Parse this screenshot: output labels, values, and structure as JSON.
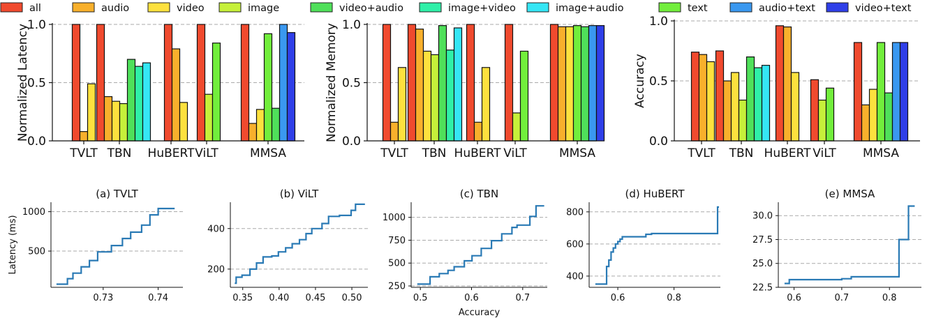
{
  "legend": [
    {
      "name": "all",
      "color": "#f04a2e"
    },
    {
      "name": "audio",
      "color": "#f8b02c"
    },
    {
      "name": "video",
      "color": "#fde13e"
    },
    {
      "name": "image",
      "color": "#c6f03a"
    },
    {
      "name": "video+audio",
      "color": "#4fe05a"
    },
    {
      "name": "image+video",
      "color": "#2ff0a8"
    },
    {
      "name": "image+audio",
      "color": "#35e6f5"
    },
    {
      "name": "text",
      "color": "#72ee3c"
    },
    {
      "name": "audio+text",
      "color": "#3a98f0"
    },
    {
      "name": "video+text",
      "color": "#2f3fe8"
    }
  ],
  "chart_data": [
    {
      "type": "bar",
      "ylabel": "Normalized Latency",
      "ylim": [
        0,
        1.0
      ],
      "yticks": [
        "0.0",
        "0.5",
        "1.0"
      ],
      "grid": "horizontal dashed at 0.5 and 1.0",
      "categories": [
        "TVLT",
        "TBN",
        "HuBERT",
        "ViLT",
        "MMSA"
      ],
      "groups": [
        {
          "category": "TVLT",
          "bars": [
            {
              "series": "all",
              "value": 1.0
            },
            {
              "series": "audio",
              "value": 0.08
            },
            {
              "series": "video",
              "value": 0.49
            }
          ]
        },
        {
          "category": "TBN",
          "bars": [
            {
              "series": "all",
              "value": 1.0
            },
            {
              "series": "audio",
              "value": 0.38
            },
            {
              "series": "video",
              "value": 0.34
            },
            {
              "series": "image",
              "value": 0.32
            },
            {
              "series": "video+audio",
              "value": 0.7
            },
            {
              "series": "image+video",
              "value": 0.64
            },
            {
              "series": "image+audio",
              "value": 0.67
            }
          ]
        },
        {
          "category": "HuBERT",
          "bars": [
            {
              "series": "all",
              "value": 1.0
            },
            {
              "series": "audio",
              "value": 0.79
            },
            {
              "series": "video",
              "value": 0.33
            }
          ]
        },
        {
          "category": "ViLT",
          "bars": [
            {
              "series": "all",
              "value": 1.0
            },
            {
              "series": "image",
              "value": 0.4
            },
            {
              "series": "text",
              "value": 0.84
            }
          ]
        },
        {
          "category": "MMSA",
          "bars": [
            {
              "series": "all",
              "value": 1.0
            },
            {
              "series": "audio",
              "value": 0.15
            },
            {
              "series": "video",
              "value": 0.27
            },
            {
              "series": "text",
              "value": 0.92
            },
            {
              "series": "video+audio",
              "value": 0.28
            },
            {
              "series": "audio+text",
              "value": 1.0
            },
            {
              "series": "video+text",
              "value": 0.93
            }
          ]
        }
      ]
    },
    {
      "type": "bar",
      "ylabel": "Normalized Memory",
      "ylim": [
        0,
        1.0
      ],
      "yticks": [
        "0.0",
        "0.5",
        "1.0"
      ],
      "grid": "horizontal dashed at 0.5 and 1.0",
      "categories": [
        "TVLT",
        "TBN",
        "HuBERT",
        "ViLT",
        "MMSA"
      ],
      "groups": [
        {
          "category": "TVLT",
          "bars": [
            {
              "series": "all",
              "value": 1.0
            },
            {
              "series": "audio",
              "value": 0.16
            },
            {
              "series": "video",
              "value": 0.63
            }
          ]
        },
        {
          "category": "TBN",
          "bars": [
            {
              "series": "all",
              "value": 1.0
            },
            {
              "series": "audio",
              "value": 0.96
            },
            {
              "series": "video",
              "value": 0.77
            },
            {
              "series": "image",
              "value": 0.74
            },
            {
              "series": "video+audio",
              "value": 0.99
            },
            {
              "series": "image+video",
              "value": 0.78
            },
            {
              "series": "image+audio",
              "value": 0.97
            }
          ]
        },
        {
          "category": "HuBERT",
          "bars": [
            {
              "series": "all",
              "value": 1.0
            },
            {
              "series": "audio",
              "value": 0.16
            },
            {
              "series": "video",
              "value": 0.63
            }
          ]
        },
        {
          "category": "ViLT",
          "bars": [
            {
              "series": "all",
              "value": 1.0
            },
            {
              "series": "image",
              "value": 0.24
            },
            {
              "series": "text",
              "value": 0.77
            }
          ]
        },
        {
          "category": "MMSA",
          "bars": [
            {
              "series": "all",
              "value": 1.0
            },
            {
              "series": "audio",
              "value": 0.98
            },
            {
              "series": "video",
              "value": 0.98
            },
            {
              "series": "text",
              "value": 0.99
            },
            {
              "series": "video+audio",
              "value": 0.98
            },
            {
              "series": "audio+text",
              "value": 0.99
            },
            {
              "series": "video+text",
              "value": 0.99
            }
          ]
        }
      ]
    },
    {
      "type": "bar",
      "ylabel": "Accuracy",
      "ylim": [
        0,
        1.0
      ],
      "yticks": [
        "0.0",
        "0.5",
        "1.0"
      ],
      "grid": "horizontal dashed at 0.5 and 1.0",
      "categories": [
        "TVLT",
        "TBN",
        "HuBERT",
        "ViLT",
        "MMSA"
      ],
      "groups": [
        {
          "category": "TVLT",
          "bars": [
            {
              "series": "all",
              "value": 0.74
            },
            {
              "series": "audio",
              "value": 0.72
            },
            {
              "series": "video",
              "value": 0.66
            }
          ]
        },
        {
          "category": "TBN",
          "bars": [
            {
              "series": "all",
              "value": 0.75
            },
            {
              "series": "audio",
              "value": 0.5
            },
            {
              "series": "video",
              "value": 0.57
            },
            {
              "series": "image",
              "value": 0.34
            },
            {
              "series": "video+audio",
              "value": 0.7
            },
            {
              "series": "image+video",
              "value": 0.61
            },
            {
              "series": "image+audio",
              "value": 0.63
            }
          ]
        },
        {
          "category": "HuBERT",
          "bars": [
            {
              "series": "all",
              "value": 0.96
            },
            {
              "series": "audio",
              "value": 0.95
            },
            {
              "series": "video",
              "value": 0.57
            }
          ]
        },
        {
          "category": "ViLT",
          "bars": [
            {
              "series": "all",
              "value": 0.51
            },
            {
              "series": "image",
              "value": 0.34
            },
            {
              "series": "text",
              "value": 0.44
            }
          ]
        },
        {
          "category": "MMSA",
          "bars": [
            {
              "series": "all",
              "value": 0.82
            },
            {
              "series": "audio",
              "value": 0.3
            },
            {
              "series": "video",
              "value": 0.43
            },
            {
              "series": "text",
              "value": 0.82
            },
            {
              "series": "video+audio",
              "value": 0.4
            },
            {
              "series": "audio+text",
              "value": 0.82
            },
            {
              "series": "video+text",
              "value": 0.82
            }
          ]
        }
      ]
    },
    {
      "type": "line",
      "title": "(a) TVLT",
      "xlabel": "",
      "ylabel": "Latency (ms)",
      "xlim": [
        0.7205,
        0.7445
      ],
      "ylim": [
        40,
        1120
      ],
      "xticks": [
        0.73,
        0.74
      ],
      "xtick_labels": [
        "0.73",
        "0.74"
      ],
      "yticks": [
        500,
        1000
      ],
      "ytick_labels": [
        "500",
        "1000"
      ],
      "line_color": "#2a7ab5",
      "x": [
        0.7215,
        0.7235,
        0.7235,
        0.7245,
        0.7245,
        0.726,
        0.726,
        0.7275,
        0.7275,
        0.729,
        0.729,
        0.7315,
        0.7315,
        0.7335,
        0.7335,
        0.735,
        0.735,
        0.737,
        0.737,
        0.7385,
        0.7385,
        0.74,
        0.74,
        0.743
      ],
      "y": [
        80,
        80,
        150,
        150,
        220,
        220,
        300,
        300,
        380,
        380,
        490,
        490,
        570,
        570,
        660,
        660,
        740,
        740,
        830,
        830,
        960,
        960,
        1040,
        1040
      ]
    },
    {
      "type": "line",
      "title": "(b) ViLT",
      "xlabel": "",
      "ylabel": "",
      "xlim": [
        0.333,
        0.522
      ],
      "ylim": [
        110,
        530
      ],
      "xticks": [
        0.35,
        0.4,
        0.45,
        0.5
      ],
      "xtick_labels": [
        "0.35",
        "0.40",
        "0.45",
        "0.50"
      ],
      "yticks": [
        200,
        400
      ],
      "ytick_labels": [
        "200",
        "400"
      ],
      "line_color": "#2a7ab5",
      "x": [
        0.339,
        0.341,
        0.341,
        0.349,
        0.349,
        0.36,
        0.36,
        0.369,
        0.369,
        0.378,
        0.378,
        0.39,
        0.39,
        0.399,
        0.399,
        0.409,
        0.409,
        0.418,
        0.418,
        0.428,
        0.428,
        0.437,
        0.437,
        0.445,
        0.445,
        0.459,
        0.459,
        0.468,
        0.468,
        0.483,
        0.483,
        0.499,
        0.499,
        0.505,
        0.505,
        0.518
      ],
      "y": [
        130,
        130,
        160,
        160,
        170,
        170,
        200,
        200,
        230,
        230,
        260,
        260,
        265,
        265,
        285,
        285,
        305,
        305,
        325,
        325,
        345,
        345,
        375,
        375,
        400,
        400,
        425,
        425,
        460,
        460,
        465,
        465,
        490,
        490,
        520,
        520
      ]
    },
    {
      "type": "line",
      "title": "(c) TBN",
      "xlabel": "Accuracy",
      "ylabel": "",
      "xlim": [
        0.482,
        0.748
      ],
      "ylim": [
        235,
        1165
      ],
      "xticks": [
        0.5,
        0.6,
        0.7
      ],
      "xtick_labels": [
        "0.5",
        "0.6",
        "0.7"
      ],
      "yticks": [
        250,
        500,
        750,
        1000
      ],
      "ytick_labels": [
        "250",
        "500",
        "750",
        "1000"
      ],
      "line_color": "#2a7ab5",
      "x": [
        0.494,
        0.519,
        0.519,
        0.537,
        0.537,
        0.554,
        0.554,
        0.566,
        0.566,
        0.586,
        0.586,
        0.601,
        0.601,
        0.619,
        0.619,
        0.639,
        0.639,
        0.659,
        0.659,
        0.679,
        0.679,
        0.689,
        0.689,
        0.714,
        0.714,
        0.726,
        0.726,
        0.742
      ],
      "y": [
        270,
        270,
        350,
        350,
        385,
        385,
        420,
        420,
        460,
        460,
        525,
        525,
        580,
        580,
        660,
        660,
        745,
        745,
        820,
        820,
        890,
        890,
        915,
        915,
        1010,
        1010,
        1125,
        1125
      ]
    },
    {
      "type": "line",
      "title": "(d) HuBERT",
      "xlabel": "",
      "ylabel": "",
      "xlim": [
        0.498,
        0.965
      ],
      "ylim": [
        330,
        860
      ],
      "xticks": [
        0.6,
        0.8
      ],
      "xtick_labels": [
        "0.6",
        "0.8"
      ],
      "yticks": [
        400,
        600,
        800
      ],
      "ytick_labels": [
        "400",
        "600",
        "800"
      ],
      "line_color": "#2a7ab5",
      "x": [
        0.52,
        0.56,
        0.56,
        0.568,
        0.568,
        0.576,
        0.576,
        0.584,
        0.584,
        0.592,
        0.592,
        0.6,
        0.6,
        0.608,
        0.608,
        0.616,
        0.616,
        0.7,
        0.7,
        0.72,
        0.72,
        0.955,
        0.955,
        0.96
      ],
      "y": [
        350,
        350,
        460,
        460,
        500,
        500,
        550,
        550,
        575,
        575,
        600,
        600,
        615,
        615,
        630,
        630,
        645,
        645,
        660,
        660,
        665,
        665,
        830,
        830
      ]
    },
    {
      "type": "line",
      "title": "(e) MMSA",
      "xlabel": "",
      "ylabel": "",
      "xlim": [
        0.567,
        0.867
      ],
      "ylim": [
        22.5,
        31.4
      ],
      "xticks": [
        0.6,
        0.7,
        0.8
      ],
      "xtick_labels": [
        "0.6",
        "0.7",
        "0.8"
      ],
      "yticks": [
        22.5,
        25.0,
        27.5,
        30.0
      ],
      "ytick_labels": [
        "22.5",
        "25.0",
        "27.5",
        "30.0"
      ],
      "line_color": "#2a7ab5",
      "x": [
        0.58,
        0.59,
        0.59,
        0.7,
        0.7,
        0.72,
        0.72,
        0.82,
        0.82,
        0.84,
        0.84,
        0.853
      ],
      "y": [
        22.9,
        22.9,
        23.3,
        23.3,
        23.4,
        23.4,
        23.6,
        23.6,
        27.5,
        27.5,
        31.0,
        31.0
      ]
    }
  ]
}
